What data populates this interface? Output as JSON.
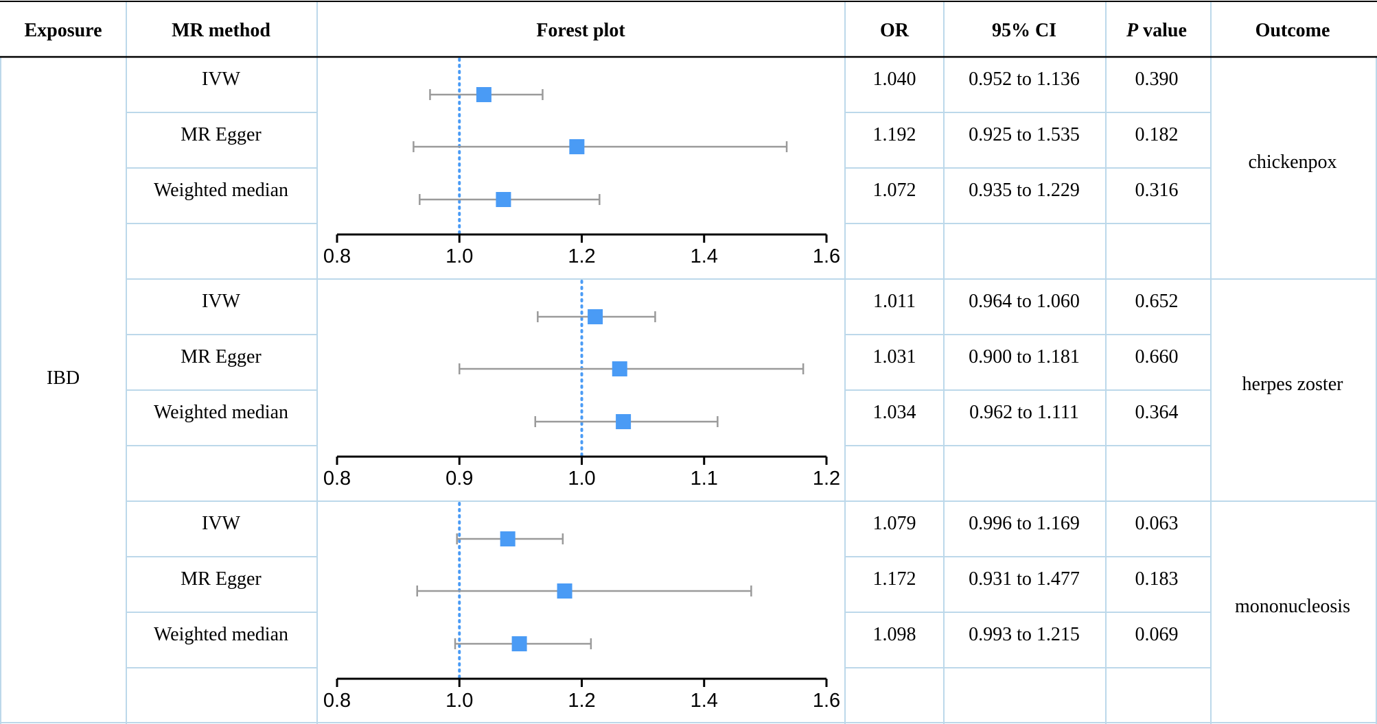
{
  "headers": {
    "exposure": "Exposure",
    "method": "MR method",
    "forest": "Forest plot",
    "or": "OR",
    "ci": "95% CI",
    "p_italic": "P",
    "p_rest": " value",
    "outcome": "Outcome"
  },
  "exposure": "IBD",
  "colors": {
    "marker": "#4a9bf5",
    "reference_line": "#4a9bf5",
    "whisker": "#9a9a9a",
    "grid": "#bcd8ea",
    "rule": "#000000"
  },
  "groups": [
    {
      "outcome": "chickenpox",
      "rows": [
        {
          "method": "IVW",
          "or": "1.040",
          "ci": "0.952 to 1.136",
          "p": "0.390"
        },
        {
          "method": "MR Egger",
          "or": "1.192",
          "ci": "0.925 to 1.535",
          "p": "0.182"
        },
        {
          "method": "Weighted median",
          "or": "1.072",
          "ci": "0.935 to 1.229",
          "p": "0.316"
        }
      ]
    },
    {
      "outcome": "herpes zoster",
      "rows": [
        {
          "method": "IVW",
          "or": "1.011",
          "ci": "0.964 to 1.060",
          "p": "0.652"
        },
        {
          "method": "MR Egger",
          "or": "1.031",
          "ci": "0.900 to 1.181",
          "p": "0.660"
        },
        {
          "method": "Weighted median",
          "or": "1.034",
          "ci": "0.962 to 1.111",
          "p": "0.364"
        }
      ]
    },
    {
      "outcome": "mononucleosis",
      "rows": [
        {
          "method": "IVW",
          "or": "1.079",
          "ci": "0.996 to 1.169",
          "p": "0.063"
        },
        {
          "method": "MR Egger",
          "or": "1.172",
          "ci": "0.931 to 1.477",
          "p": "0.183"
        },
        {
          "method": "Weighted median",
          "or": "1.098",
          "ci": "0.993 to 1.215",
          "p": "0.069"
        }
      ]
    }
  ],
  "chart_data": [
    {
      "type": "scatter",
      "title": "Forest plot",
      "outcome": "chickenpox",
      "reference": 1.0,
      "xlim": [
        0.8,
        1.6
      ],
      "ticks": [
        "0.8",
        "1.0",
        "1.2",
        "1.4",
        "1.6"
      ],
      "series": [
        {
          "name": "IVW",
          "or": 1.04,
          "lower": 0.952,
          "upper": 1.136
        },
        {
          "name": "MR Egger",
          "or": 1.192,
          "lower": 0.925,
          "upper": 1.535
        },
        {
          "name": "Weighted median",
          "or": 1.072,
          "lower": 0.935,
          "upper": 1.229
        }
      ]
    },
    {
      "type": "scatter",
      "title": "Forest plot",
      "outcome": "herpes zoster",
      "reference": 1.0,
      "xlim": [
        0.8,
        1.2
      ],
      "ticks": [
        "0.8",
        "0.9",
        "1.0",
        "1.1",
        "1.2"
      ],
      "series": [
        {
          "name": "IVW",
          "or": 1.011,
          "lower": 0.964,
          "upper": 1.06
        },
        {
          "name": "MR Egger",
          "or": 1.031,
          "lower": 0.9,
          "upper": 1.181
        },
        {
          "name": "Weighted median",
          "or": 1.034,
          "lower": 0.962,
          "upper": 1.111
        }
      ]
    },
    {
      "type": "scatter",
      "title": "Forest plot",
      "outcome": "mononucleosis",
      "reference": 1.0,
      "xlim": [
        0.8,
        1.6
      ],
      "ticks": [
        "0.8",
        "1.0",
        "1.2",
        "1.4",
        "1.6"
      ],
      "series": [
        {
          "name": "IVW",
          "or": 1.079,
          "lower": 0.996,
          "upper": 1.169
        },
        {
          "name": "MR Egger",
          "or": 1.172,
          "lower": 0.931,
          "upper": 1.477
        },
        {
          "name": "Weighted median",
          "or": 1.098,
          "lower": 0.993,
          "upper": 1.215
        }
      ]
    }
  ]
}
